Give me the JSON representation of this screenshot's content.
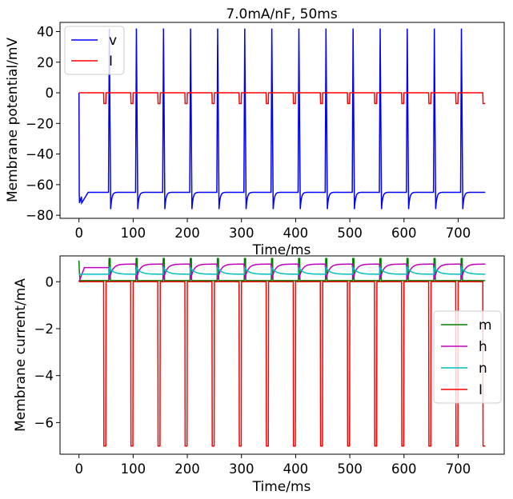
{
  "chart_data": [
    {
      "type": "line",
      "title": "7.0mA/nF, 50ms",
      "xlabel": "Time/ms",
      "ylabel": "Membrane potential/mV",
      "xlim": [
        -35,
        785
      ],
      "ylim": [
        -82,
        46
      ],
      "xticks": [
        0,
        100,
        200,
        300,
        400,
        500,
        600,
        700
      ],
      "yticks": [
        -80,
        -60,
        -40,
        -20,
        0,
        20,
        40
      ],
      "grid": false,
      "legend": "top-left",
      "stimulus": {
        "period_ms": 50,
        "pulse_width_ms": 4,
        "amplitude": -7,
        "first_pulse_ms": 46,
        "t_end_ms": 750
      },
      "spikes_ms": [
        56,
        106,
        156,
        206,
        256,
        306,
        356,
        406,
        456,
        506,
        556,
        606,
        656,
        706
      ],
      "series": [
        {
          "name": "v",
          "color": "#0000ff",
          "resting_mV": -65,
          "peak_mV": 42,
          "trough_mV": -76
        },
        {
          "name": "I",
          "color": "#ff0000",
          "baseline": 0,
          "pulse_value": -7
        }
      ]
    },
    {
      "type": "line",
      "title": "",
      "xlabel": "Time/ms",
      "ylabel": "Membrane current/mA",
      "xlim": [
        -35,
        785
      ],
      "ylim": [
        -7.35,
        1.1
      ],
      "xticks": [
        0,
        100,
        200,
        300,
        400,
        500,
        600,
        700
      ],
      "yticks": [
        -6,
        -4,
        -2,
        0
      ],
      "grid": false,
      "legend": "center-right",
      "series": [
        {
          "name": "m",
          "color": "#008000",
          "resting": 0.05,
          "peak": 0.99
        },
        {
          "name": "h",
          "color": "#bf00bf",
          "resting": 0.6,
          "peak": 0.75,
          "trough": 0.1
        },
        {
          "name": "n",
          "color": "#00bfbf",
          "resting": 0.32,
          "peak": 0.6
        },
        {
          "name": "I",
          "color": "#ff0000",
          "baseline": 0,
          "pulse_value": -7
        }
      ]
    }
  ]
}
